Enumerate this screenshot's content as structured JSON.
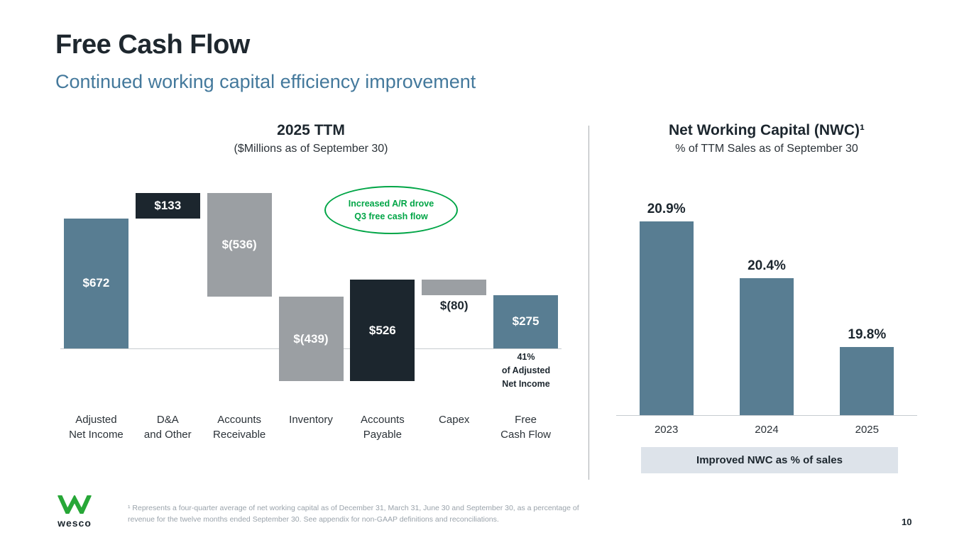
{
  "slide": {
    "title": "Free Cash Flow",
    "subtitle": "Continued working capital efficiency improvement",
    "page_number": "10",
    "footnote": "¹ Represents a four-quarter average of net working capital as of December 31, March 31, June 30 and September 30, as a percentage of revenue for the twelve months ended September 30.  See appendix for non-GAAP definitions and reconciliations.",
    "logo_text": "wesco"
  },
  "colors": {
    "bar_blue": "#587d92",
    "bar_dark": "#1c262e",
    "bar_gray": "#9b9fa3",
    "green": "#00a546",
    "caption_bg": "#dde3ea",
    "axis": "#c7ccd0",
    "text_dark": "#1c262e",
    "subtitle_blue": "#44799c",
    "footnote_gray": "#9aa3ab"
  },
  "chart_data": [
    {
      "type": "bar",
      "subtype": "waterfall",
      "title": "2025 TTM",
      "subtitle": "($Millions as of September 30)",
      "unit": "$Millions",
      "categories": [
        [
          "Adjusted",
          "Net Income"
        ],
        [
          "D&A",
          "and Other"
        ],
        [
          "Accounts",
          "Receivable"
        ],
        [
          "Inventory"
        ],
        [
          "Accounts",
          "Payable"
        ],
        [
          "Capex"
        ],
        [
          "Free",
          "Cash Flow"
        ]
      ],
      "values": [
        672,
        133,
        -536,
        -439,
        526,
        -80,
        275
      ],
      "labels": [
        "$672",
        "$133",
        "$(536)",
        "$(439)",
        "$526",
        "$(80)",
        "$275"
      ],
      "bar_roles": [
        "total",
        "positive",
        "negative",
        "negative",
        "positive",
        "negative",
        "total"
      ],
      "label_placement": [
        "inside",
        "inside",
        "inside",
        "inside",
        "inside",
        "below",
        "inside"
      ],
      "annotation": [
        "Increased A/R drove",
        "Q3 free cash flow"
      ],
      "fcf_note": [
        "41%",
        "of Adjusted",
        "Net Income"
      ],
      "legend_position": "none",
      "grid": false
    },
    {
      "type": "bar",
      "title": "Net Working Capital (NWC)¹",
      "subtitle": "% of TTM Sales as of September 30",
      "categories": [
        "2023",
        "2024",
        "2025"
      ],
      "values": [
        20.9,
        20.4,
        19.8
      ],
      "labels": [
        "20.9%",
        "20.4%",
        "19.8%"
      ],
      "ylim": [
        19.2,
        21.1
      ],
      "ylabel": "% of TTM sales",
      "caption": "Improved NWC as % of sales",
      "legend_position": "none",
      "grid": false
    }
  ]
}
